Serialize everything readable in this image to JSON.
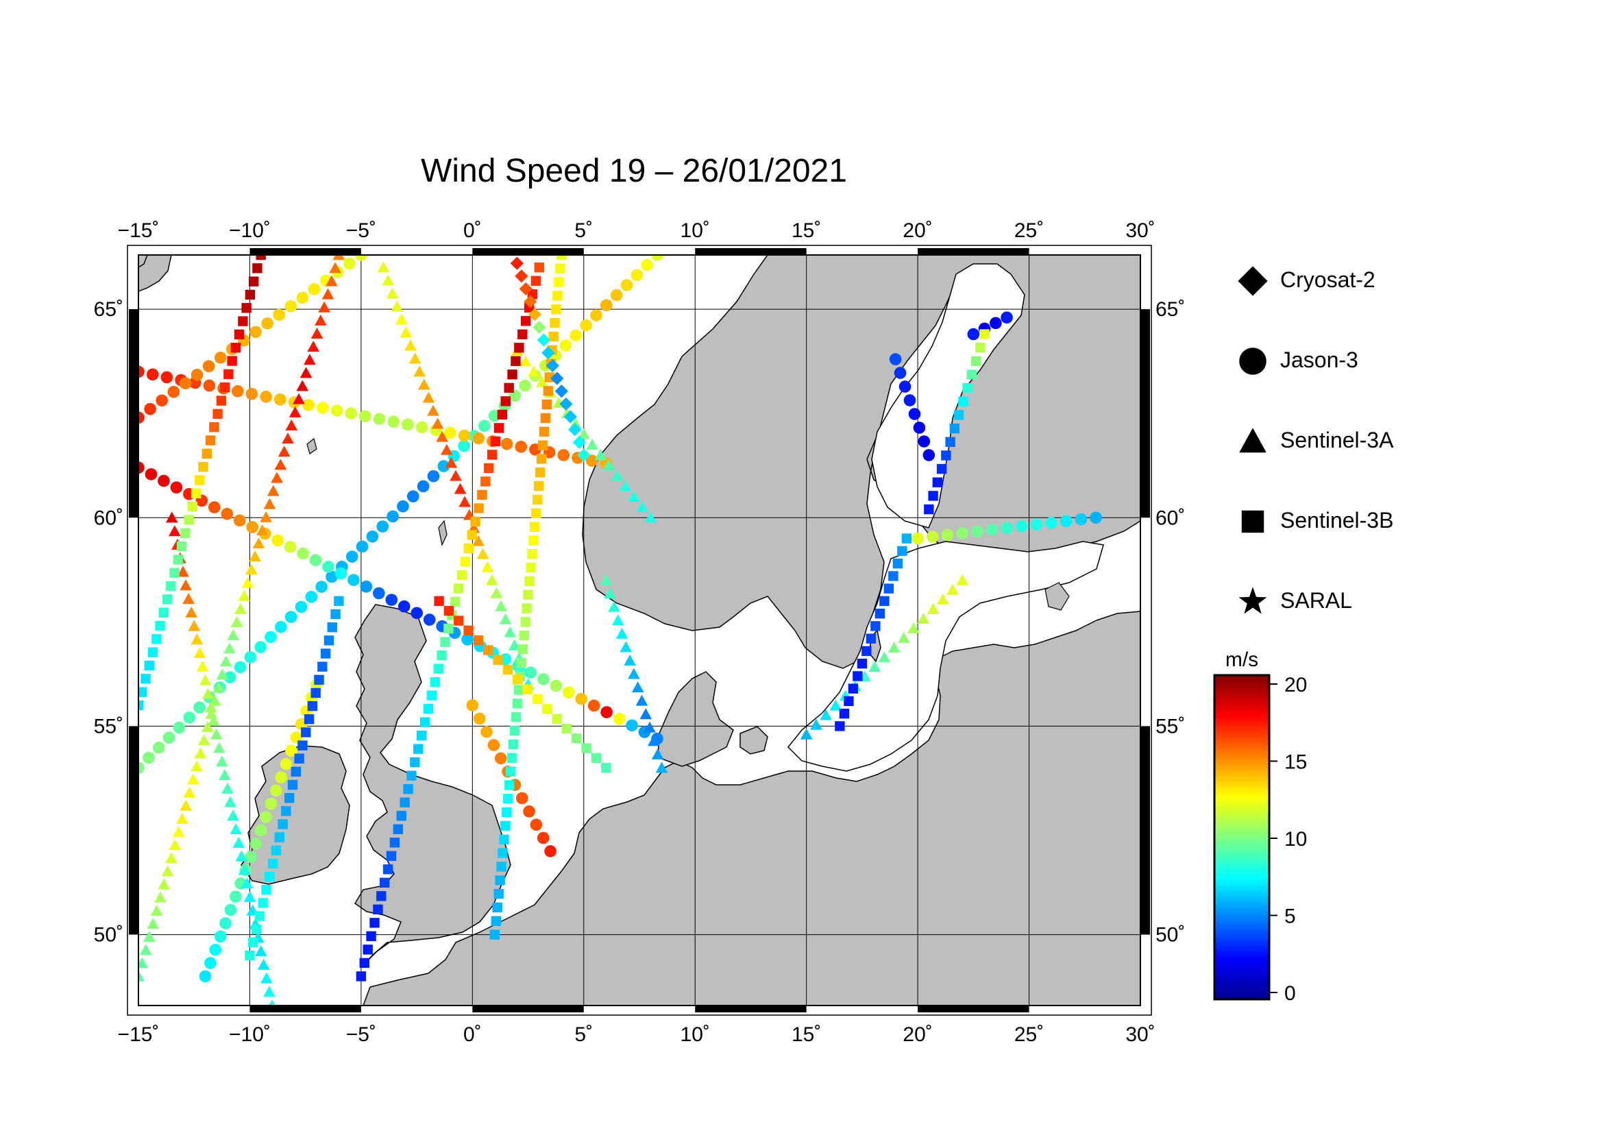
{
  "title": "Wind Speed 19 – 26/01/2021",
  "map": {
    "lon_range": [
      -15,
      30
    ],
    "lat_range": [
      48.3,
      66.3
    ],
    "lon_ticks": [
      -15,
      -10,
      -5,
      0,
      5,
      10,
      15,
      20,
      25,
      30
    ],
    "lat_ticks": [
      50,
      55,
      60,
      65
    ],
    "lon_tick_labels": [
      "−15˚",
      "−10˚",
      "−5˚",
      "0˚",
      "5˚",
      "10˚",
      "15˚",
      "20˚",
      "25˚",
      "30˚"
    ],
    "lat_tick_labels": [
      "50˚",
      "55˚",
      "60˚",
      "65˚"
    ],
    "land_color": "#bebebe",
    "sea_color": "#ffffff",
    "grid": true
  },
  "legend": {
    "items": [
      {
        "label": "Cryosat-2",
        "symbol": "diamond"
      },
      {
        "label": "Jason-3",
        "symbol": "circle"
      },
      {
        "label": "Sentinel-3A",
        "symbol": "triangle"
      },
      {
        "label": "Sentinel-3B",
        "symbol": "square"
      },
      {
        "label": "SARAL",
        "symbol": "star"
      }
    ]
  },
  "colorbar": {
    "unit": "m/s",
    "min": 0,
    "max": 20,
    "ticks": [
      0,
      5,
      10,
      15,
      20
    ],
    "tick_labels": [
      "0",
      "5",
      "10",
      "15",
      "20"
    ],
    "colormap": [
      "#00008f",
      "#0000ff",
      "#00ffff",
      "#80ff80",
      "#ffff00",
      "#ff8000",
      "#ff0000",
      "#800000"
    ]
  },
  "chart_data": {
    "type": "scatter",
    "x_unit": "longitude (deg)",
    "y_unit": "latitude (deg)",
    "color_unit": "m/s",
    "series": [
      {
        "name": "Jason-3",
        "symbol": "circle",
        "start": [
          -15,
          54.0
        ],
        "end": [
          8.3,
          66.3
        ],
        "values": [
          10,
          10,
          9,
          9,
          8,
          8,
          7,
          7,
          6,
          6,
          6,
          5,
          5,
          8,
          9,
          10,
          11,
          12,
          13,
          14,
          13,
          12
        ]
      },
      {
        "name": "Jason-3",
        "symbol": "circle",
        "start": [
          -15,
          61.2
        ],
        "end": [
          8.3,
          54.7
        ],
        "values": [
          18,
          18,
          17,
          16,
          15,
          14,
          12,
          10,
          8,
          6,
          4,
          3,
          4,
          6,
          7,
          8,
          9,
          11,
          14,
          18,
          6,
          5
        ]
      },
      {
        "name": "Jason-3",
        "symbol": "circle",
        "start": [
          -15,
          63.5
        ],
        "end": [
          6.0,
          61.3
        ],
        "values": [
          17,
          17,
          16,
          15,
          14,
          13,
          12,
          11,
          11,
          12,
          14,
          15,
          16,
          15,
          14
        ]
      },
      {
        "name": "Jason-3",
        "symbol": "circle",
        "start": [
          -15,
          62.4
        ],
        "end": [
          -5.0,
          66.3
        ],
        "values": [
          17,
          16,
          15,
          15,
          14,
          14,
          13,
          13,
          12,
          12
        ]
      },
      {
        "name": "Jason-3",
        "symbol": "circle",
        "start": [
          -12.0,
          49.0
        ],
        "end": [
          -7.0,
          56.0
        ],
        "values": [
          7,
          8,
          9,
          10,
          11,
          12,
          13,
          12
        ]
      },
      {
        "name": "Jason-3",
        "symbol": "circle",
        "start": [
          0.0,
          55.5
        ],
        "end": [
          3.5,
          52.0
        ],
        "values": [
          14,
          14,
          15,
          15,
          16,
          16,
          17
        ]
      },
      {
        "name": "Jason-3",
        "symbol": "circle",
        "start": [
          19.0,
          63.8
        ],
        "end": [
          20.5,
          61.5
        ],
        "values": [
          4,
          3,
          3,
          2,
          2
        ]
      },
      {
        "name": "Jason-3",
        "symbol": "circle",
        "start": [
          20.0,
          59.5
        ],
        "end": [
          28.0,
          60.0
        ],
        "values": [
          12,
          11,
          10,
          9,
          8,
          8,
          7,
          6
        ]
      },
      {
        "name": "Jason-3",
        "symbol": "circle",
        "start": [
          22.5,
          64.4
        ],
        "end": [
          24.0,
          64.8
        ],
        "values": [
          3,
          2,
          2,
          3
        ]
      },
      {
        "name": "Sentinel-3A",
        "symbol": "triangle",
        "start": [
          -15,
          49.0
        ],
        "end": [
          -6.0,
          66.3
        ],
        "values": [
          9,
          10,
          11,
          12,
          13,
          12,
          11,
          10,
          10,
          12,
          14,
          15,
          16,
          17,
          18,
          17,
          16,
          15
        ]
      },
      {
        "name": "Sentinel-3A",
        "symbol": "triangle",
        "start": [
          -13.5,
          60.0
        ],
        "end": [
          -9.0,
          48.3
        ],
        "values": [
          18,
          16,
          15,
          13,
          11,
          10,
          9,
          8,
          8,
          7,
          7,
          8
        ]
      },
      {
        "name": "Sentinel-3A",
        "symbol": "triangle",
        "start": [
          -4.0,
          66.0
        ],
        "end": [
          2.5,
          56.0
        ],
        "values": [
          12,
          12,
          13,
          14,
          15,
          16,
          17,
          15,
          12,
          10,
          9,
          8
        ]
      },
      {
        "name": "Sentinel-3A",
        "symbol": "triangle",
        "start": [
          6.0,
          58.5
        ],
        "end": [
          8.5,
          54.0
        ],
        "values": [
          9,
          8,
          7,
          6,
          5,
          5,
          6
        ]
      },
      {
        "name": "Sentinel-3A",
        "symbol": "triangle",
        "start": [
          15.0,
          54.8
        ],
        "end": [
          22.0,
          58.5
        ],
        "values": [
          6,
          7,
          8,
          9,
          10,
          11,
          12,
          12
        ]
      },
      {
        "name": "Sentinel-3A",
        "symbol": "triangle",
        "start": [
          2.0,
          64.0
        ],
        "end": [
          8.0,
          60.0
        ],
        "values": [
          13,
          12,
          11,
          10,
          9,
          8,
          8
        ]
      },
      {
        "name": "Sentinel-3B",
        "symbol": "square",
        "start": [
          -15,
          55.5
        ],
        "end": [
          -9.5,
          66.3
        ],
        "values": [
          7,
          7,
          8,
          9,
          10,
          12,
          14,
          16,
          17,
          18,
          19,
          19
        ]
      },
      {
        "name": "Sentinel-3B",
        "symbol": "square",
        "start": [
          -10.0,
          49.5
        ],
        "end": [
          -6.0,
          58.0
        ],
        "values": [
          8,
          8,
          7,
          6,
          5,
          4,
          4,
          5,
          6
        ]
      },
      {
        "name": "Sentinel-3B",
        "symbol": "square",
        "start": [
          -5.0,
          49.0
        ],
        "end": [
          3.0,
          66.0
        ],
        "values": [
          3,
          3,
          4,
          5,
          6,
          7,
          8,
          10,
          12,
          14,
          16,
          18,
          19,
          18,
          16
        ]
      },
      {
        "name": "Sentinel-3B",
        "symbol": "square",
        "start": [
          1.0,
          50.0
        ],
        "end": [
          4.0,
          66.3
        ],
        "values": [
          6,
          6,
          7,
          8,
          9,
          10,
          11,
          12,
          13,
          14,
          15,
          14,
          13,
          12
        ]
      },
      {
        "name": "Sentinel-3B",
        "symbol": "square",
        "start": [
          16.5,
          55.0
        ],
        "end": [
          19.5,
          59.5
        ],
        "values": [
          3,
          3,
          3,
          4,
          4,
          5,
          6
        ]
      },
      {
        "name": "Sentinel-3B",
        "symbol": "square",
        "start": [
          20.5,
          60.2
        ],
        "end": [
          23.0,
          64.4
        ],
        "values": [
          3,
          3,
          4,
          6,
          8,
          10,
          12
        ]
      },
      {
        "name": "Sentinel-3B",
        "symbol": "square",
        "start": [
          -1.5,
          58.0
        ],
        "end": [
          6.0,
          54.0
        ],
        "values": [
          17,
          16,
          14,
          13,
          12,
          10,
          9
        ]
      },
      {
        "name": "Cryosat-2",
        "symbol": "diamond",
        "start": [
          2.0,
          66.1
        ],
        "end": [
          5.0,
          61.5
        ],
        "values": [
          17,
          16,
          15,
          8,
          6,
          5,
          6,
          7,
          8
        ]
      }
    ]
  }
}
